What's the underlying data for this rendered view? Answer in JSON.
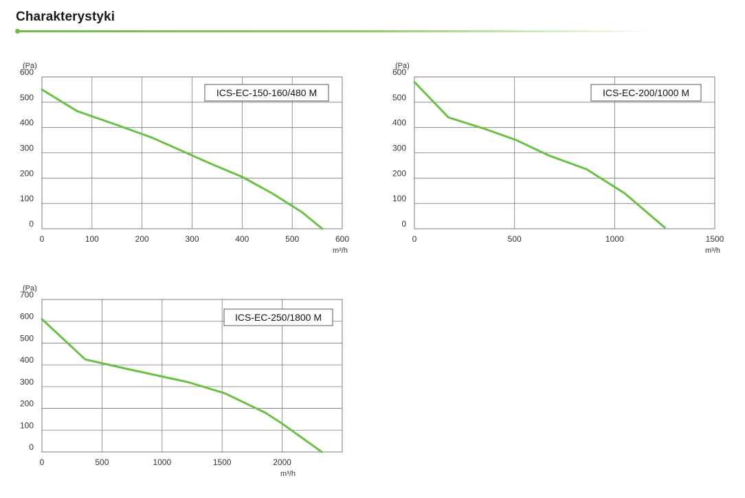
{
  "header": {
    "title": "Charakterystyki"
  },
  "colors": {
    "accent": "#6dbe45",
    "curve": "#6abf45",
    "grid": "#7a7a7a"
  },
  "chart_data": [
    {
      "type": "line",
      "label": "ICS-EC-150-160/480 M",
      "y_unit": "(Pa)",
      "x_unit": "m³/h",
      "xlim": [
        0,
        600
      ],
      "ylim": [
        0,
        600
      ],
      "x_ticks": [
        0,
        100,
        200,
        300,
        400,
        500,
        600
      ],
      "y_ticks": [
        0,
        100,
        200,
        300,
        400,
        500,
        600
      ],
      "grid": true,
      "series": [
        {
          "x": [
            0,
            70,
            150,
            220,
            300,
            340,
            400,
            460,
            520,
            560
          ],
          "y": [
            550,
            465,
            410,
            360,
            290,
            255,
            205,
            140,
            65,
            0
          ]
        }
      ]
    },
    {
      "type": "line",
      "label": "ICS-EC-200/1000 M",
      "y_unit": "(Pa)",
      "x_unit": "m³/h",
      "xlim": [
        0,
        1500
      ],
      "ylim": [
        0,
        600
      ],
      "x_ticks": [
        0,
        500,
        1000,
        1500
      ],
      "y_ticks": [
        0,
        100,
        200,
        300,
        400,
        500,
        600
      ],
      "grid": true,
      "series": [
        {
          "x": [
            0,
            170,
            350,
            510,
            670,
            860,
            1050,
            1250
          ],
          "y": [
            580,
            440,
            395,
            350,
            290,
            235,
            140,
            5
          ]
        }
      ]
    },
    {
      "type": "line",
      "label": "ICS-EC-250/1800 M",
      "y_unit": "(Pa)",
      "x_unit": "m³/h",
      "xlim": [
        0,
        2500
      ],
      "ylim": [
        0,
        700
      ],
      "x_ticks": [
        0,
        500,
        1000,
        1500,
        2000
      ],
      "y_ticks": [
        0,
        100,
        200,
        300,
        400,
        500,
        600,
        700
      ],
      "grid": true,
      "series": [
        {
          "x": [
            0,
            360,
            720,
            1220,
            1520,
            1860,
            2000,
            2330
          ],
          "y": [
            610,
            425,
            380,
            320,
            270,
            180,
            130,
            0
          ]
        }
      ]
    }
  ]
}
